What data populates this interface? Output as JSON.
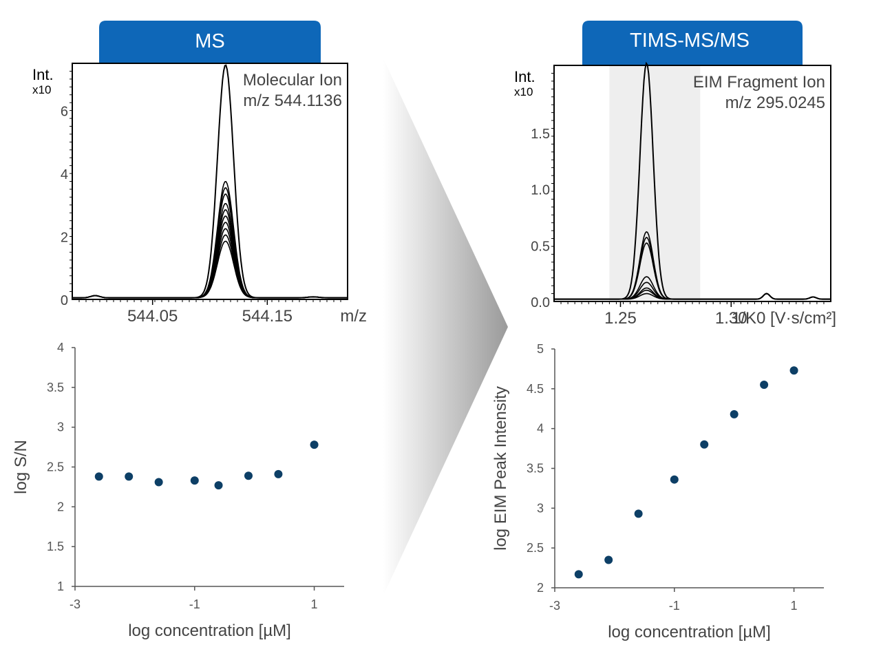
{
  "colors": {
    "header_bg": "#0E67B8",
    "header_text": "#ffffff",
    "trace": "#000000",
    "point": "#0D3F66",
    "highlight": "#EEEEEE",
    "arrow_dark": "#9A9A9A",
    "arrow_light": "#FFFFFF"
  },
  "headers": {
    "left": "MS",
    "right": "TIMS-MS/MS"
  },
  "chart_data": [
    {
      "type": "line",
      "xlabel": "m/z",
      "ylabel": "Int.",
      "ymultiplier": "x10",
      "yexponent": "4",
      "annotation": [
        "Molecular Ion",
        "m/z 544.1136"
      ],
      "xlim": [
        543.98,
        544.22
      ],
      "ylim": [
        0,
        7.5
      ],
      "xticks": [
        544.05,
        544.15
      ],
      "xtick_labels": [
        "544.05",
        "544.15"
      ],
      "yticks": [
        0,
        2,
        4,
        6
      ],
      "ytick_labels": [
        "0",
        "2",
        "4",
        "6"
      ],
      "peak_center": 544.1136,
      "peak_width": 0.007,
      "peak_heights": [
        7.4,
        3.7,
        3.5,
        3.3,
        3.0,
        2.8,
        2.6,
        2.4,
        2.2,
        2.0,
        1.8
      ],
      "baseline": 0.05
    },
    {
      "type": "line",
      "xlabel": "1/K0 [V·s/cm²]",
      "ylabel": "Int.",
      "ymultiplier": "x10",
      "yexponent": "4",
      "annotation": [
        "EIM Fragment Ion",
        "m/z 295.0245"
      ],
      "xlim": [
        1.22,
        1.345
      ],
      "ylim": [
        0,
        2.1
      ],
      "xticks": [
        1.25,
        1.3
      ],
      "xtick_labels": [
        "1.25",
        "1.30"
      ],
      "yticks": [
        0.0,
        0.5,
        1.0,
        1.5
      ],
      "ytick_labels": [
        "0.0",
        "0.5",
        "1.0",
        "1.5"
      ],
      "highlight_range": [
        1.245,
        1.286
      ],
      "peak_center": 1.2618,
      "peak_width": 0.003,
      "peak_heights": [
        2.1,
        0.6,
        0.55,
        0.5,
        0.2,
        0.15,
        0.1,
        0.08,
        0.05
      ],
      "baseline": 0.02
    },
    {
      "type": "scatter",
      "xlabel": "log concentration [µM]",
      "ylabel": "log S/N",
      "xlim": [
        -3,
        1.5
      ],
      "ylim": [
        1,
        4
      ],
      "xticks": [
        -3,
        -1,
        1
      ],
      "xtick_labels": [
        "-3",
        "-1",
        "1"
      ],
      "yticks": [
        1,
        1.5,
        2,
        2.5,
        3,
        3.5,
        4
      ],
      "ytick_labels": [
        "1",
        "1.5",
        "2",
        "2.5",
        "3",
        "3.5",
        "4"
      ],
      "x": [
        -2.6,
        -2.1,
        -1.6,
        -1.0,
        -0.6,
        -0.1,
        0.4,
        1.0
      ],
      "y": [
        2.38,
        2.38,
        2.31,
        2.33,
        2.27,
        2.39,
        2.41,
        2.78
      ]
    },
    {
      "type": "scatter",
      "xlabel": "log concentration [µM]",
      "ylabel": "log  EIM Peak Intensity",
      "xlim": [
        -3,
        1.5
      ],
      "ylim": [
        2,
        5
      ],
      "xticks": [
        -3,
        -1,
        1
      ],
      "xtick_labels": [
        "-3",
        "-1",
        "1"
      ],
      "yticks": [
        2,
        2.5,
        3,
        3.5,
        4,
        4.5,
        5
      ],
      "ytick_labels": [
        "2",
        "2.5",
        "3",
        "3.5",
        "4",
        "4.5",
        "5"
      ],
      "x": [
        -2.6,
        -2.1,
        -1.6,
        -1.0,
        -0.5,
        0.0,
        0.5,
        1.0
      ],
      "y": [
        2.17,
        2.35,
        2.93,
        3.36,
        3.8,
        4.18,
        4.55,
        4.73
      ]
    }
  ]
}
